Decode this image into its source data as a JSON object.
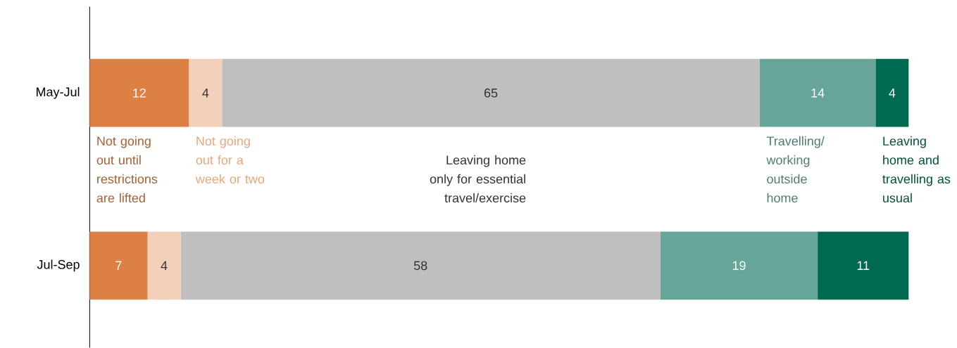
{
  "chart_data": {
    "type": "bar",
    "orientation": "horizontal",
    "stacked": true,
    "data_labels": true,
    "categories": [
      "May-Jul",
      "Jul-Sep"
    ],
    "series": [
      {
        "name": "Not going out until restrictions are lifted",
        "color": "#dc8044",
        "values": [
          12,
          7
        ]
      },
      {
        "name": "Not going out for a week or two",
        "color": "#f2d0b9",
        "values": [
          4,
          4
        ]
      },
      {
        "name": "Leaving home only for essential travel/exercise",
        "color": "#bfbfbf",
        "values": [
          65,
          58
        ]
      },
      {
        "name": "Travelling/ working outside home",
        "color": "#66a598",
        "values": [
          14,
          19
        ]
      },
      {
        "name": "Leaving home and travelling as usual",
        "color": "#006a50",
        "values": [
          4,
          11
        ]
      }
    ]
  }
}
